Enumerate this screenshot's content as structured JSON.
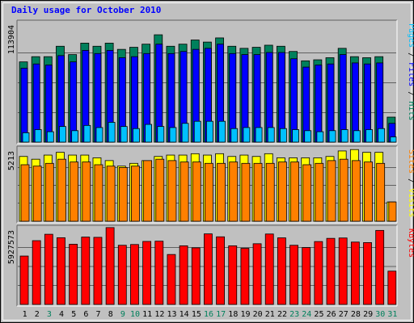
{
  "title": "Daily usage for October 2010",
  "colors": {
    "background": "#C0C0C0",
    "panel": "#C0C0C0",
    "hits": "#00805C",
    "files": "#0000FF",
    "pages": "#00C0FF",
    "visits": "#FFFF00",
    "sites": "#FF8000",
    "kbytes": "#FF0000",
    "weekday_tick": "#000000",
    "weekend_tick": "#00805C",
    "title": "#0000FF"
  },
  "chart_data": [
    {
      "type": "bar",
      "name": "hits-files-pages",
      "ymax_label": "113904",
      "ylim": [
        0,
        113904
      ],
      "axis_label_parts": [
        {
          "text": "Pages",
          "color": "#00C0FF"
        },
        {
          "text": " / ",
          "color": "#000000"
        },
        {
          "text": "Files",
          "color": "#0000FF"
        },
        {
          "text": " / ",
          "color": "#000000"
        },
        {
          "text": "Hits",
          "color": "#00805C"
        }
      ],
      "categories": [
        "1",
        "2",
        "3",
        "4",
        "5",
        "6",
        "7",
        "8",
        "9",
        "10",
        "11",
        "12",
        "13",
        "14",
        "15",
        "16",
        "17",
        "18",
        "19",
        "20",
        "21",
        "22",
        "23",
        "24",
        "25",
        "26",
        "27",
        "28",
        "29",
        "30",
        "31"
      ],
      "series": [
        {
          "name": "Hits",
          "color": "#00805C",
          "values": [
            77000,
            82000,
            82000,
            92000,
            84000,
            95000,
            92000,
            95000,
            89000,
            91000,
            94000,
            103000,
            92000,
            94000,
            98000,
            96000,
            100000,
            92000,
            90000,
            91000,
            93000,
            92000,
            87000,
            78000,
            79000,
            81000,
            90000,
            82000,
            81000,
            82000,
            24000
          ]
        },
        {
          "name": "Files",
          "color": "#0000FF",
          "values": [
            71000,
            75000,
            74000,
            83000,
            77000,
            88000,
            85000,
            88000,
            81000,
            82000,
            85000,
            94000,
            85000,
            87000,
            89000,
            90000,
            94000,
            85000,
            84000,
            84000,
            86000,
            86000,
            80000,
            72000,
            74000,
            75000,
            84000,
            76000,
            75000,
            76000,
            18000
          ]
        },
        {
          "name": "Pages",
          "color": "#00C0FF",
          "values": [
            9000,
            12000,
            10000,
            15000,
            11000,
            16000,
            14000,
            19000,
            15000,
            13000,
            17000,
            15000,
            14000,
            18000,
            20000,
            20000,
            20000,
            13000,
            14000,
            14000,
            14000,
            13000,
            12000,
            11000,
            10000,
            11000,
            12000,
            11000,
            12000,
            13000,
            5000
          ]
        }
      ]
    },
    {
      "type": "bar",
      "name": "visits-sites",
      "ymax_label": "5213",
      "ylim": [
        0,
        5213
      ],
      "axis_label_parts": [
        {
          "text": "Sites",
          "color": "#FF8000"
        },
        {
          "text": " / ",
          "color": "#000000"
        },
        {
          "text": "Visits",
          "color": "#FFFF00"
        }
      ],
      "categories": [
        "1",
        "2",
        "3",
        "4",
        "5",
        "6",
        "7",
        "8",
        "9",
        "10",
        "11",
        "12",
        "13",
        "14",
        "15",
        "16",
        "17",
        "18",
        "19",
        "20",
        "21",
        "22",
        "23",
        "24",
        "25",
        "26",
        "27",
        "28",
        "29",
        "30",
        "31"
      ],
      "series": [
        {
          "name": "Visits",
          "color": "#FFFF00",
          "values": [
            4700,
            4500,
            4800,
            5000,
            4800,
            4800,
            4600,
            4400,
            4000,
            4200,
            4400,
            4700,
            4800,
            4800,
            4900,
            4800,
            4900,
            4700,
            4800,
            4700,
            4900,
            4600,
            4600,
            4600,
            4600,
            4700,
            5100,
            5200,
            5000,
            5000,
            1400
          ]
        },
        {
          "name": "Sites",
          "color": "#FF8000",
          "values": [
            4100,
            4000,
            4200,
            4500,
            4300,
            4300,
            4100,
            4000,
            3900,
            4000,
            4400,
            4500,
            4400,
            4300,
            4300,
            4200,
            4200,
            4300,
            4200,
            4200,
            4200,
            4300,
            4300,
            4100,
            4200,
            4400,
            4500,
            4400,
            4300,
            4200,
            1400
          ]
        }
      ]
    },
    {
      "type": "bar",
      "name": "kbytes",
      "ymax_label": "5927573",
      "ylim": [
        0,
        5927573
      ],
      "axis_label_parts": [
        {
          "text": "KBytes",
          "color": "#FF0000"
        }
      ],
      "categories": [
        "1",
        "2",
        "3",
        "4",
        "5",
        "6",
        "7",
        "8",
        "9",
        "10",
        "11",
        "12",
        "13",
        "14",
        "15",
        "16",
        "17",
        "18",
        "19",
        "20",
        "21",
        "22",
        "23",
        "24",
        "25",
        "26",
        "27",
        "28",
        "29",
        "30",
        "31"
      ],
      "series": [
        {
          "name": "KBytes",
          "color": "#FF0000",
          "values": [
            3780000,
            4980000,
            5480000,
            5210000,
            4700000,
            5260000,
            5240000,
            6000000,
            4620000,
            4680000,
            4920000,
            4940000,
            3900000,
            4580000,
            4420000,
            5510000,
            5280000,
            4580000,
            4380000,
            4740000,
            5500000,
            5200000,
            4620000,
            4440000,
            4910000,
            5160000,
            5190000,
            4870000,
            4830000,
            5780000,
            2600000
          ]
        }
      ]
    }
  ],
  "x_ticks": [
    {
      "label": "1",
      "weekend": false
    },
    {
      "label": "2",
      "weekend": false
    },
    {
      "label": "3",
      "weekend": true
    },
    {
      "label": "4",
      "weekend": false
    },
    {
      "label": "5",
      "weekend": false
    },
    {
      "label": "6",
      "weekend": false
    },
    {
      "label": "7",
      "weekend": false
    },
    {
      "label": "8",
      "weekend": false
    },
    {
      "label": "9",
      "weekend": true
    },
    {
      "label": "10",
      "weekend": true
    },
    {
      "label": "11",
      "weekend": false
    },
    {
      "label": "12",
      "weekend": false
    },
    {
      "label": "13",
      "weekend": false
    },
    {
      "label": "14",
      "weekend": false
    },
    {
      "label": "15",
      "weekend": false
    },
    {
      "label": "16",
      "weekend": true
    },
    {
      "label": "17",
      "weekend": true
    },
    {
      "label": "18",
      "weekend": false
    },
    {
      "label": "19",
      "weekend": false
    },
    {
      "label": "20",
      "weekend": false
    },
    {
      "label": "21",
      "weekend": false
    },
    {
      "label": "22",
      "weekend": false
    },
    {
      "label": "23",
      "weekend": true
    },
    {
      "label": "24",
      "weekend": true
    },
    {
      "label": "25",
      "weekend": false
    },
    {
      "label": "26",
      "weekend": false
    },
    {
      "label": "27",
      "weekend": false
    },
    {
      "label": "28",
      "weekend": false
    },
    {
      "label": "29",
      "weekend": false
    },
    {
      "label": "30",
      "weekend": true
    },
    {
      "label": "31",
      "weekend": true
    }
  ]
}
